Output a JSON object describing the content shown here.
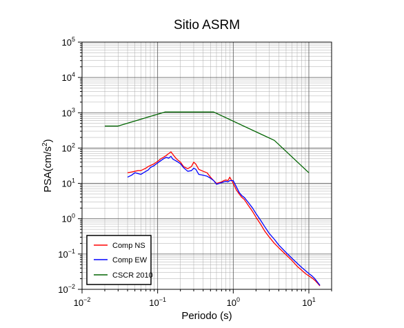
{
  "chart_data": {
    "type": "line",
    "title": "Sitio ASRM",
    "xlabel": "Periodo (s)",
    "ylabel_base": "PSA(cm/s",
    "ylabel_sup": "2",
    "ylabel_end": ")",
    "xscale": "log",
    "yscale": "log",
    "xlim": [
      0.01,
      20
    ],
    "ylim": [
      0.01,
      100000
    ],
    "grid": true,
    "legend_position": "bottom-left",
    "x_ticks": [
      {
        "base": "10",
        "exp": "−2",
        "value": 0.01
      },
      {
        "base": "10",
        "exp": "−1",
        "value": 0.1
      },
      {
        "base": "10",
        "exp": "0",
        "value": 1
      },
      {
        "base": "10",
        "exp": "1",
        "value": 10
      }
    ],
    "y_ticks": [
      {
        "base": "10",
        "exp": "−2",
        "value": 0.01
      },
      {
        "base": "10",
        "exp": "−1",
        "value": 0.1
      },
      {
        "base": "10",
        "exp": "0",
        "value": 1
      },
      {
        "base": "10",
        "exp": "1",
        "value": 10
      },
      {
        "base": "10",
        "exp": "2",
        "value": 100
      },
      {
        "base": "10",
        "exp": "3",
        "value": 1000
      },
      {
        "base": "10",
        "exp": "4",
        "value": 10000
      },
      {
        "base": "10",
        "exp": "5",
        "value": 100000
      }
    ],
    "series": [
      {
        "name": "Comp NS",
        "color": "#ff0000",
        "x": [
          0.04,
          0.045,
          0.05,
          0.055,
          0.06,
          0.065,
          0.07,
          0.075,
          0.08,
          0.09,
          0.1,
          0.11,
          0.12,
          0.13,
          0.14,
          0.15,
          0.16,
          0.17,
          0.18,
          0.2,
          0.22,
          0.25,
          0.28,
          0.3,
          0.32,
          0.35,
          0.4,
          0.45,
          0.5,
          0.55,
          0.6,
          0.65,
          0.7,
          0.75,
          0.8,
          0.85,
          0.9,
          1.0,
          1.1,
          1.2,
          1.3,
          1.4,
          1.6,
          1.8,
          2.0,
          2.3,
          2.6,
          3.0,
          3.5,
          4.0,
          5.0,
          6.0,
          7.0,
          8.0,
          9.0,
          10.0,
          11.0,
          12.0,
          13.0,
          14.0
        ],
        "y": [
          20,
          21,
          22,
          23,
          23,
          25,
          27,
          30,
          32,
          36,
          42,
          50,
          55,
          62,
          70,
          78,
          65,
          55,
          48,
          40,
          30,
          26,
          30,
          40,
          35,
          25,
          22,
          20,
          15,
          12,
          10,
          10.5,
          11,
          12,
          12.5,
          12,
          15,
          10,
          6.5,
          5,
          4,
          3.5,
          2.3,
          1.6,
          1.1,
          0.7,
          0.45,
          0.3,
          0.2,
          0.15,
          0.095,
          0.065,
          0.045,
          0.035,
          0.028,
          0.024,
          0.021,
          0.018,
          0.015,
          0.0125
        ]
      },
      {
        "name": "Comp EW",
        "color": "#0000ff",
        "x": [
          0.04,
          0.045,
          0.05,
          0.055,
          0.06,
          0.065,
          0.07,
          0.075,
          0.08,
          0.09,
          0.1,
          0.11,
          0.12,
          0.13,
          0.14,
          0.15,
          0.16,
          0.17,
          0.18,
          0.2,
          0.22,
          0.25,
          0.28,
          0.3,
          0.32,
          0.35,
          0.4,
          0.45,
          0.5,
          0.55,
          0.6,
          0.65,
          0.7,
          0.75,
          0.8,
          0.85,
          0.9,
          1.0,
          1.1,
          1.2,
          1.3,
          1.4,
          1.6,
          1.8,
          2.0,
          2.3,
          2.6,
          3.0,
          3.5,
          4.0,
          5.0,
          6.0,
          7.0,
          8.0,
          9.0,
          10.0,
          11.0,
          12.0,
          13.0,
          14.0
        ],
        "y": [
          15,
          17,
          20,
          19,
          18,
          20,
          22,
          24,
          28,
          32,
          38,
          44,
          50,
          55,
          52,
          58,
          48,
          45,
          42,
          36,
          28,
          22,
          23,
          27,
          25,
          18,
          17,
          16,
          14,
          12,
          9.5,
          10,
          10.5,
          11,
          11.5,
          11,
          12,
          12,
          8,
          5.5,
          4.5,
          4,
          2.8,
          2,
          1.4,
          0.9,
          0.6,
          0.38,
          0.26,
          0.18,
          0.11,
          0.075,
          0.055,
          0.042,
          0.034,
          0.028,
          0.024,
          0.02,
          0.016,
          0.013
        ]
      },
      {
        "name": "CSCR 2010",
        "color": "#006400",
        "x": [
          0.02,
          0.03,
          0.125,
          0.55,
          3.5,
          10
        ],
        "y": [
          420,
          420,
          1050,
          1050,
          165,
          20
        ]
      }
    ]
  }
}
